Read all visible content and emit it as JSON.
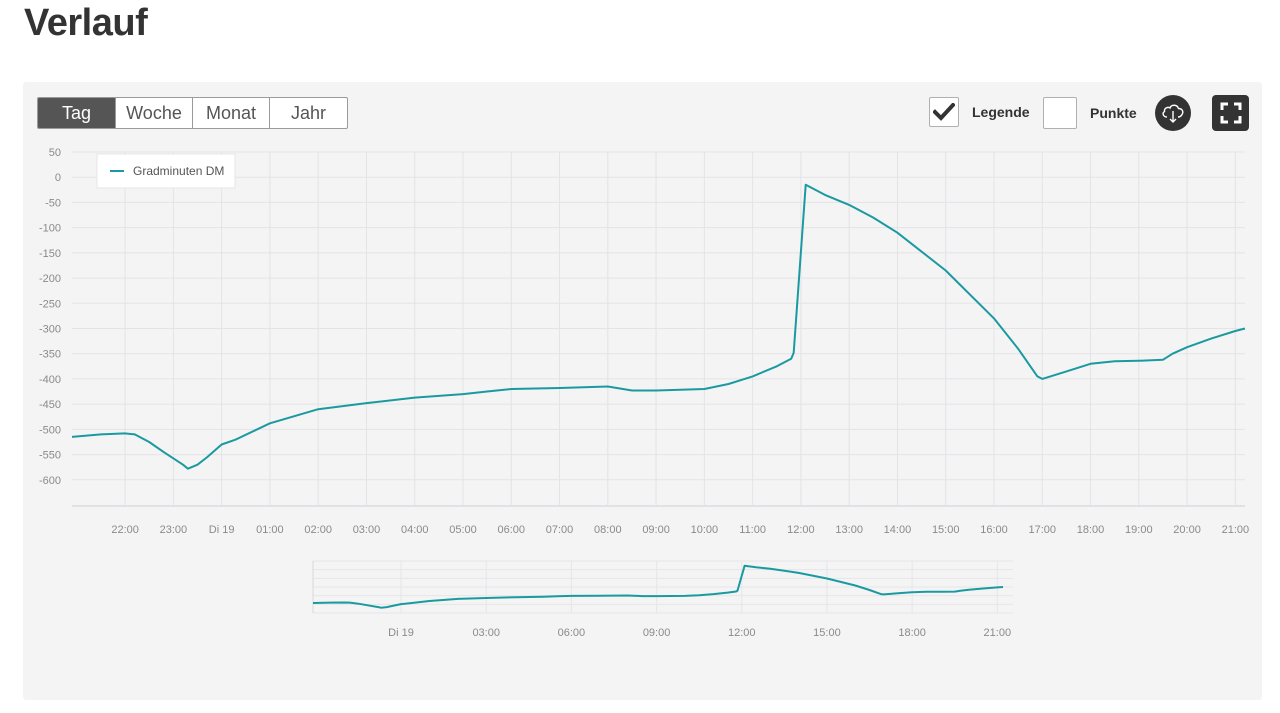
{
  "page": {
    "title": "Verlauf"
  },
  "range_tabs": [
    {
      "label": "Tag",
      "active": true
    },
    {
      "label": "Woche",
      "active": false
    },
    {
      "label": "Monat",
      "active": false
    },
    {
      "label": "Jahr",
      "active": false
    }
  ],
  "controls": {
    "legend_label": "Legende",
    "legend_checked": true,
    "points_label": "Punkte",
    "points_checked": false,
    "download_icon": "cloud-download-icon",
    "fullscreen_icon": "fullscreen-icon"
  },
  "colors": {
    "series": "#1a9aa0",
    "active_tab": "#555555",
    "button_dark": "#333333"
  },
  "chart_data": {
    "type": "line",
    "title": "",
    "xlabel": "",
    "ylabel": "",
    "ylim": [
      -650,
      50
    ],
    "y_ticks": [
      50,
      0,
      -50,
      -100,
      -150,
      -200,
      -250,
      -300,
      -350,
      -400,
      -450,
      -500,
      -550,
      -600
    ],
    "x_ticks": [
      "22:00",
      "23:00",
      "Di 19",
      "01:00",
      "02:00",
      "03:00",
      "04:00",
      "05:00",
      "06:00",
      "07:00",
      "08:00",
      "09:00",
      "10:00",
      "11:00",
      "12:00",
      "13:00",
      "14:00",
      "15:00",
      "16:00",
      "17:00",
      "18:00",
      "19:00",
      "20:00",
      "21:00"
    ],
    "grid": true,
    "legend_position": "top-left",
    "series": [
      {
        "name": "Gradminuten DM",
        "x": [
          -3.1,
          -2.5,
          -2.0,
          -1.8,
          -1.5,
          -1.2,
          -0.8,
          -0.7,
          -0.5,
          -0.3,
          0.0,
          0.3,
          1.0,
          2.0,
          3.0,
          4.0,
          5.0,
          5.5,
          6.0,
          7.0,
          8.0,
          8.5,
          9.0,
          10.0,
          10.5,
          11.0,
          11.5,
          11.8,
          11.85,
          12.1,
          12.5,
          13.0,
          13.5,
          14.0,
          15.0,
          16.0,
          16.5,
          16.9,
          17.0,
          17.5,
          18.0,
          18.5,
          19.0,
          19.5,
          19.7,
          20.0,
          20.5,
          21.0,
          21.2
        ],
        "values": [
          -515,
          -510,
          -508,
          -510,
          -525,
          -545,
          -570,
          -578,
          -570,
          -555,
          -530,
          -520,
          -488,
          -460,
          -448,
          -437,
          -430,
          -425,
          -420,
          -418,
          -415,
          -423,
          -423,
          -420,
          -410,
          -395,
          -375,
          -360,
          -348,
          -15,
          -35,
          -55,
          -80,
          -110,
          -185,
          -280,
          -340,
          -395,
          -400,
          -385,
          -370,
          -365,
          -364,
          -362,
          -350,
          -337,
          -320,
          -305,
          -300
        ]
      }
    ]
  },
  "navigator": {
    "x_ticks": [
      "Di 19",
      "03:00",
      "06:00",
      "09:00",
      "12:00",
      "15:00",
      "18:00",
      "21:00"
    ],
    "tick_hours": [
      0,
      3,
      6,
      9,
      12,
      15,
      18,
      21
    ]
  }
}
